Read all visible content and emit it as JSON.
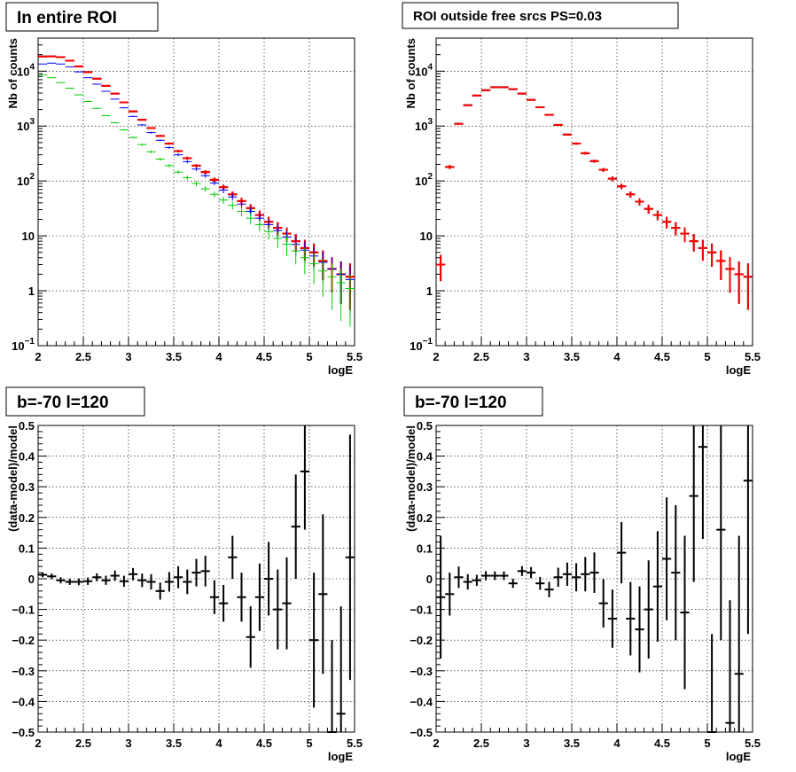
{
  "chart_data": [
    {
      "type": "scatter",
      "title": "In entire ROI",
      "xlabel": "logE",
      "ylabel": "Nb of counts",
      "log_y": true,
      "xlim": [
        2,
        5.5
      ],
      "ylim": [
        0.1,
        40000
      ],
      "x_ticks": [
        "2",
        "2.5",
        "3",
        "3.5",
        "4",
        "4.5",
        "5",
        "5.5"
      ],
      "y_ticks": [
        {
          "value": 0.1,
          "mant": "10",
          "exp": "−1"
        },
        {
          "value": 1,
          "mant": "1",
          "exp": ""
        },
        {
          "value": 10,
          "mant": "10",
          "exp": ""
        },
        {
          "value": 100,
          "mant": "10",
          "exp": "2"
        },
        {
          "value": 1000,
          "mant": "10",
          "exp": "3"
        },
        {
          "value": 10000,
          "mant": "10",
          "exp": "4"
        }
      ],
      "grid": true,
      "x": [
        2.05,
        2.15,
        2.25,
        2.35,
        2.45,
        2.55,
        2.65,
        2.75,
        2.85,
        2.95,
        3.05,
        3.15,
        3.25,
        3.35,
        3.45,
        3.55,
        3.65,
        3.75,
        3.85,
        3.95,
        4.05,
        4.15,
        4.25,
        4.35,
        4.45,
        4.55,
        4.65,
        4.75,
        4.85,
        4.95,
        5.05,
        5.15,
        5.25,
        5.35,
        5.45
      ],
      "series": [
        {
          "color": "#000000",
          "values": [
            18500,
            18600,
            18000,
            15500,
            12200,
            9600,
            7300,
            5400,
            3900,
            2700,
            1850,
            1300,
            920,
            660,
            480,
            350,
            260,
            190,
            145,
            105,
            77,
            57,
            43,
            32,
            24,
            18,
            14,
            11,
            8,
            6,
            5,
            3.5,
            2.5,
            2,
            1.8
          ],
          "errors_rel": [
            0.01,
            0.01,
            0.01,
            0.01,
            0.01,
            0.01,
            0.012,
            0.014,
            0.016,
            0.02,
            0.024,
            0.028,
            0.033,
            0.04,
            0.045,
            0.054,
            0.062,
            0.073,
            0.083,
            0.098,
            0.11,
            0.13,
            0.15,
            0.18,
            0.2,
            0.24,
            0.27,
            0.3,
            0.35,
            0.41,
            0.45,
            0.55,
            0.63,
            0.71,
            0.75
          ]
        },
        {
          "color": "#ff0000",
          "values": [
            18500,
            18600,
            18000,
            15500,
            12200,
            9600,
            7300,
            5400,
            3900,
            2700,
            1850,
            1300,
            920,
            660,
            480,
            350,
            260,
            190,
            145,
            105,
            77,
            57,
            43,
            32,
            24,
            18,
            14,
            11,
            8,
            6,
            5,
            3.5,
            2.5,
            2,
            1.8
          ],
          "errors_rel": [
            0.01,
            0.01,
            0.01,
            0.01,
            0.01,
            0.01,
            0.012,
            0.014,
            0.016,
            0.02,
            0.024,
            0.028,
            0.033,
            0.04,
            0.045,
            0.054,
            0.062,
            0.073,
            0.083,
            0.098,
            0.11,
            0.13,
            0.15,
            0.18,
            0.2,
            0.24,
            0.27,
            0.3,
            0.35,
            0.41,
            0.45,
            0.55,
            0.63,
            0.71,
            0.75
          ]
        },
        {
          "color": "#0000ff",
          "values": [
            13500,
            14000,
            13500,
            12000,
            9700,
            7600,
            5800,
            4300,
            3100,
            2150,
            1500,
            1050,
            760,
            550,
            405,
            300,
            225,
            165,
            125,
            92,
            68,
            51,
            38,
            28,
            21,
            16,
            12.5,
            9.5,
            7,
            5.5,
            4.3,
            3.3,
            2.5,
            2,
            1.6
          ],
          "errors_rel": [
            0.01,
            0.01,
            0.01,
            0.01,
            0.01,
            0.01,
            0.013,
            0.015,
            0.018,
            0.022,
            0.026,
            0.031,
            0.036,
            0.043,
            0.05,
            0.058,
            0.067,
            0.078,
            0.09,
            0.1,
            0.12,
            0.14,
            0.16,
            0.19,
            0.22,
            0.25,
            0.28,
            0.32,
            0.38,
            0.43,
            0.48,
            0.55,
            0.63,
            0.71,
            0.79
          ]
        },
        {
          "color": "#00cc00",
          "values": [
            8500,
            7600,
            6200,
            4900,
            3700,
            2800,
            2100,
            1550,
            1150,
            850,
            620,
            460,
            340,
            250,
            190,
            145,
            115,
            90,
            72,
            57,
            45,
            36,
            28,
            21,
            16,
            12,
            9,
            7,
            5.3,
            4,
            3.1,
            2.3,
            1.8,
            1.4,
            1.1
          ],
          "errors_rel": [
            0.011,
            0.011,
            0.013,
            0.014,
            0.016,
            0.019,
            0.022,
            0.025,
            0.03,
            0.034,
            0.04,
            0.047,
            0.054,
            0.063,
            0.073,
            0.083,
            0.093,
            0.105,
            0.118,
            0.132,
            0.149,
            0.167,
            0.19,
            0.22,
            0.25,
            0.29,
            0.33,
            0.38,
            0.43,
            0.5,
            0.57,
            0.66,
            0.75,
            0.8,
            0.8
          ]
        }
      ]
    },
    {
      "type": "scatter",
      "title": "ROI outside free srcs PS=0.03",
      "xlabel": "logE",
      "ylabel": "Nb of counts",
      "log_y": true,
      "xlim": [
        2,
        5.5
      ],
      "ylim": [
        0.1,
        40000
      ],
      "x_ticks": [
        "2",
        "2.5",
        "3",
        "3.5",
        "4",
        "4.5",
        "5",
        "5.5"
      ],
      "y_ticks": [
        {
          "value": 0.1,
          "mant": "10",
          "exp": "−1"
        },
        {
          "value": 1,
          "mant": "1",
          "exp": ""
        },
        {
          "value": 10,
          "mant": "10",
          "exp": ""
        },
        {
          "value": 100,
          "mant": "10",
          "exp": "2"
        },
        {
          "value": 1000,
          "mant": "10",
          "exp": "3"
        },
        {
          "value": 10000,
          "mant": "10",
          "exp": "4"
        }
      ],
      "grid": true,
      "x": [
        2.05,
        2.15,
        2.25,
        2.35,
        2.45,
        2.55,
        2.65,
        2.75,
        2.85,
        2.95,
        3.05,
        3.15,
        3.25,
        3.35,
        3.45,
        3.55,
        3.65,
        3.75,
        3.85,
        3.95,
        4.05,
        4.15,
        4.25,
        4.35,
        4.45,
        4.55,
        4.65,
        4.75,
        4.85,
        4.95,
        5.05,
        5.15,
        5.25,
        5.35,
        5.45
      ],
      "series": [
        {
          "color": "#000000",
          "values": [
            3,
            180,
            1100,
            2400,
            3600,
            4500,
            5100,
            5100,
            4700,
            3900,
            3000,
            2200,
            1600,
            1050,
            700,
            480,
            320,
            230,
            160,
            110,
            80,
            57,
            42,
            31,
            24,
            18,
            14,
            11,
            8,
            6,
            5,
            3.5,
            2.5,
            2,
            1.8
          ],
          "errors_rel": [
            0.5,
            0.08,
            0.03,
            0.02,
            0.017,
            0.015,
            0.014,
            0.014,
            0.015,
            0.016,
            0.018,
            0.021,
            0.025,
            0.031,
            0.038,
            0.046,
            0.056,
            0.066,
            0.079,
            0.095,
            0.11,
            0.13,
            0.15,
            0.18,
            0.2,
            0.24,
            0.27,
            0.3,
            0.35,
            0.41,
            0.45,
            0.55,
            0.63,
            0.71,
            0.75
          ]
        },
        {
          "color": "#ff0000",
          "values": [
            3,
            180,
            1100,
            2400,
            3600,
            4500,
            5100,
            5100,
            4700,
            3900,
            3000,
            2200,
            1600,
            1050,
            700,
            480,
            320,
            230,
            160,
            110,
            80,
            57,
            42,
            31,
            24,
            18,
            14,
            11,
            8,
            6,
            5,
            3.5,
            2.5,
            2,
            1.8
          ],
          "errors_rel": [
            0.5,
            0.08,
            0.03,
            0.02,
            0.017,
            0.015,
            0.014,
            0.014,
            0.015,
            0.016,
            0.018,
            0.021,
            0.025,
            0.031,
            0.038,
            0.046,
            0.056,
            0.066,
            0.079,
            0.095,
            0.11,
            0.13,
            0.15,
            0.18,
            0.2,
            0.24,
            0.27,
            0.3,
            0.35,
            0.41,
            0.45,
            0.55,
            0.63,
            0.71,
            0.75
          ]
        }
      ]
    },
    {
      "type": "scatter",
      "title": "b=-70 l=120",
      "xlabel": "logE",
      "ylabel": "(data-model)/model",
      "log_y": false,
      "xlim": [
        2,
        5.5
      ],
      "ylim": [
        -0.5,
        0.5
      ],
      "x_ticks": [
        "2",
        "2.5",
        "3",
        "3.5",
        "4",
        "4.5",
        "5",
        "5.5"
      ],
      "y_ticks": [
        {
          "value": -0.5,
          "label": "−0.5"
        },
        {
          "value": -0.4,
          "label": "−0.4"
        },
        {
          "value": -0.3,
          "label": "−0.3"
        },
        {
          "value": -0.2,
          "label": "−0.2"
        },
        {
          "value": -0.1,
          "label": "−0.1"
        },
        {
          "value": 0,
          "label": "0"
        },
        {
          "value": 0.1,
          "label": "0.1"
        },
        {
          "value": 0.2,
          "label": "0.2"
        },
        {
          "value": 0.3,
          "label": "0.3"
        },
        {
          "value": 0.4,
          "label": "0.4"
        },
        {
          "value": 0.5,
          "label": "0.5"
        }
      ],
      "grid": true,
      "x": [
        2.05,
        2.15,
        2.25,
        2.35,
        2.45,
        2.55,
        2.65,
        2.75,
        2.85,
        2.95,
        3.05,
        3.15,
        3.25,
        3.35,
        3.45,
        3.55,
        3.65,
        3.75,
        3.85,
        3.95,
        4.05,
        4.15,
        4.25,
        4.35,
        4.45,
        4.55,
        4.65,
        4.75,
        4.85,
        4.95,
        5.05,
        5.15,
        5.25,
        5.35,
        5.45
      ],
      "series": [
        {
          "color": "#000000",
          "values": [
            0.013,
            0.008,
            -0.005,
            -0.01,
            -0.01,
            -0.008,
            0.005,
            -0.005,
            0.01,
            -0.008,
            0.015,
            -0.005,
            -0.01,
            -0.04,
            -0.01,
            0.005,
            -0.01,
            0.02,
            0.025,
            -0.06,
            -0.08,
            0.07,
            -0.06,
            -0.19,
            -0.06,
            0,
            -0.1,
            -0.08,
            0.17,
            0.35,
            -0.2,
            -0.05,
            -0.5,
            -0.44,
            0.07
          ],
          "errors": [
            0.008,
            0.009,
            0.01,
            0.01,
            0.011,
            0.012,
            0.013,
            0.015,
            0.017,
            0.018,
            0.02,
            0.022,
            0.025,
            0.028,
            0.032,
            0.036,
            0.04,
            0.045,
            0.05,
            0.055,
            0.06,
            0.07,
            0.08,
            0.1,
            0.11,
            0.12,
            0.13,
            0.15,
            0.17,
            0.19,
            0.22,
            0.26,
            0.3,
            0.35,
            0.4
          ]
        }
      ]
    },
    {
      "type": "scatter",
      "title": "b=-70 l=120",
      "xlabel": "logE",
      "ylabel": "(data-model)/model",
      "log_y": false,
      "xlim": [
        2,
        5.5
      ],
      "ylim": [
        -0.5,
        0.5
      ],
      "x_ticks": [
        "2",
        "2.5",
        "3",
        "3.5",
        "4",
        "4.5",
        "5",
        "5.5"
      ],
      "y_ticks": [
        {
          "value": -0.5,
          "label": "−0.5"
        },
        {
          "value": -0.4,
          "label": "−0.4"
        },
        {
          "value": -0.3,
          "label": "−0.3"
        },
        {
          "value": -0.2,
          "label": "−0.2"
        },
        {
          "value": -0.1,
          "label": "−0.1"
        },
        {
          "value": 0,
          "label": "0"
        },
        {
          "value": 0.1,
          "label": "0.1"
        },
        {
          "value": 0.2,
          "label": "0.2"
        },
        {
          "value": 0.3,
          "label": "0.3"
        },
        {
          "value": 0.4,
          "label": "0.4"
        },
        {
          "value": 0.5,
          "label": "0.5"
        }
      ],
      "grid": true,
      "x": [
        2.05,
        2.15,
        2.25,
        2.35,
        2.45,
        2.55,
        2.65,
        2.75,
        2.85,
        2.95,
        3.05,
        3.15,
        3.25,
        3.35,
        3.45,
        3.55,
        3.65,
        3.75,
        3.85,
        3.95,
        4.05,
        4.15,
        4.25,
        4.35,
        4.45,
        4.55,
        4.65,
        4.75,
        4.85,
        4.95,
        5.05,
        5.15,
        5.25,
        5.35,
        5.45
      ],
      "series": [
        {
          "color": "#000000",
          "values": [
            -0.06,
            -0.05,
            0.005,
            -0.01,
            -0.005,
            0.01,
            0.01,
            0.01,
            -0.015,
            0.025,
            0.02,
            -0.015,
            -0.035,
            0.005,
            0.015,
            0.005,
            0.015,
            0.02,
            -0.08,
            -0.13,
            0.085,
            -0.13,
            -0.165,
            -0.1,
            -0.025,
            0.065,
            0.02,
            -0.11,
            0.27,
            0.43,
            -0.5,
            0.16,
            -0.47,
            -0.31,
            0.32
          ],
          "errors": [
            0.2,
            0.07,
            0.035,
            0.025,
            0.018,
            0.015,
            0.014,
            0.014,
            0.015,
            0.016,
            0.018,
            0.021,
            0.025,
            0.031,
            0.038,
            0.046,
            0.056,
            0.066,
            0.079,
            0.095,
            0.1,
            0.12,
            0.14,
            0.16,
            0.18,
            0.2,
            0.22,
            0.25,
            0.28,
            0.3,
            0.32,
            0.36,
            0.4,
            0.45,
            0.5
          ]
        }
      ]
    }
  ]
}
